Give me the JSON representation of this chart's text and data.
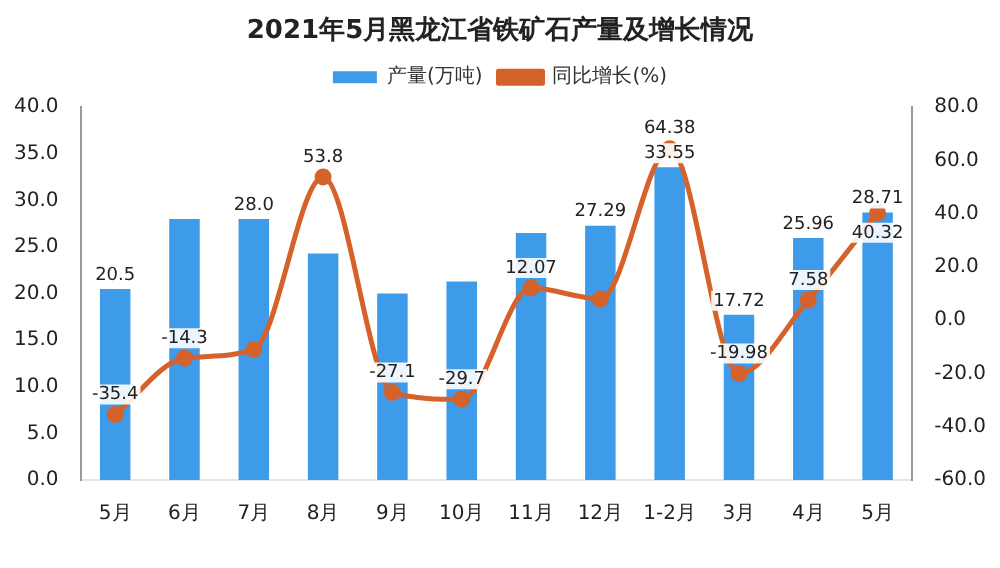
{
  "chart_data": {
    "type": "bar",
    "title": "2021年5月黑龙江省铁矿石产量及增长情况",
    "categories": [
      "5月",
      "6月",
      "7月",
      "8月",
      "9月",
      "10月",
      "11月",
      "12月",
      "1-2月",
      "3月",
      "4月",
      "5月"
    ],
    "series": [
      {
        "name": "产量(万吨)",
        "color": "#3d9be9",
        "values": [
          20.5,
          28,
          28.0,
          24.3,
          20,
          21.3,
          26.5,
          27.29,
          33.55,
          17.72,
          25.96,
          28.71
        ],
        "value_labels": [
          "20.5",
          null,
          "28.0",
          null,
          null,
          null,
          null,
          "27.29",
          "33.55",
          "17.72",
          "25.96",
          "28.71"
        ]
      },
      {
        "name": "同比增长(%)",
        "type": "line",
        "axis": "y2",
        "color": "#d4622a",
        "values": [
          -35.4,
          -14.3,
          -11,
          53.8,
          -27.1,
          -29.7,
          12.07,
          8,
          64.38,
          -19.98,
          7.58,
          40.32
        ],
        "value_labels": [
          "-35.4",
          "-14.3",
          null,
          "53.8",
          "-27.1",
          "-29.7",
          "12.07",
          null,
          "64.38",
          "-19.98",
          "7.58",
          "40.32"
        ]
      }
    ],
    "ylim": [
      0,
      40
    ],
    "yticks": [
      {
        "value": 0,
        "label": "0.0"
      },
      {
        "value": 5,
        "label": "5.0"
      },
      {
        "value": 10,
        "label": "10.0"
      },
      {
        "value": 15,
        "label": "15.0"
      },
      {
        "value": 20,
        "label": "20.0"
      },
      {
        "value": 25,
        "label": "25.0"
      },
      {
        "value": 30,
        "label": "30.0"
      },
      {
        "value": 35,
        "label": "35.0"
      },
      {
        "value": 40,
        "label": "40.0"
      }
    ],
    "y2lim": [
      -60,
      80
    ],
    "y2ticks": [
      {
        "value": -60,
        "label": "-60.0"
      },
      {
        "value": -40,
        "label": "-40.0"
      },
      {
        "value": -20,
        "label": "-20.0"
      },
      {
        "value": 0,
        "label": "0.0"
      },
      {
        "value": 20,
        "label": "20.0"
      },
      {
        "value": 40,
        "label": "40.0"
      },
      {
        "value": 60,
        "label": "60.0"
      },
      {
        "value": 80,
        "label": "80.0"
      }
    ],
    "legend": "top",
    "grid": false,
    "marker": "circle"
  }
}
